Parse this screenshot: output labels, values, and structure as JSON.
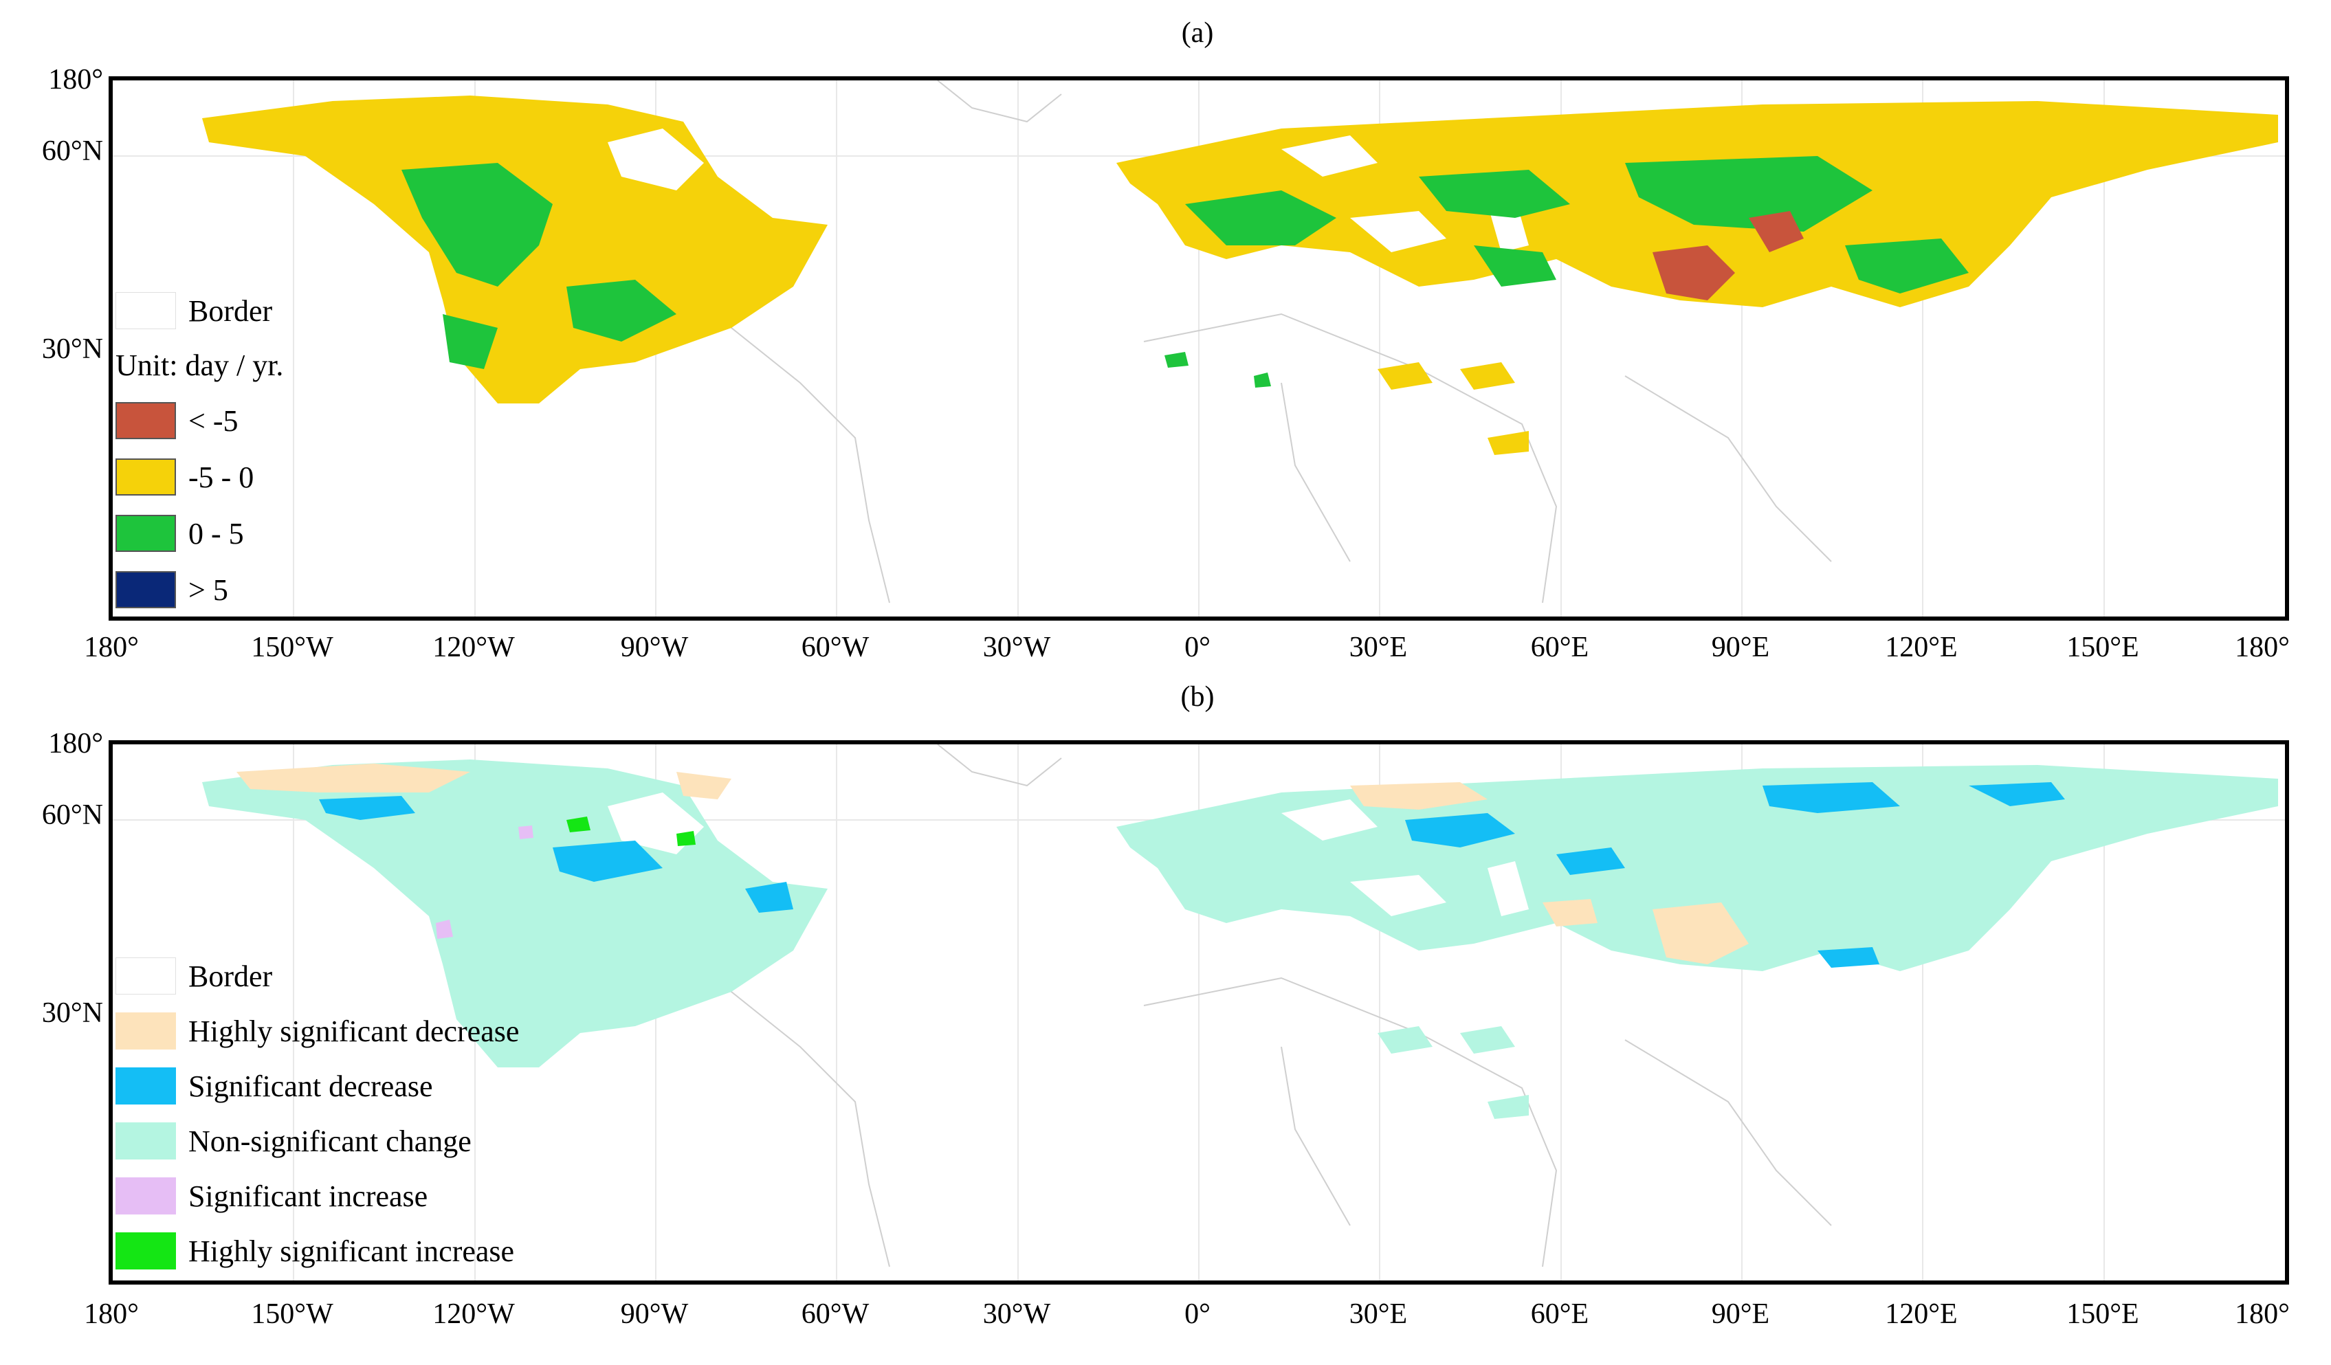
{
  "panels": [
    {
      "label": "(a)",
      "legend": {
        "border_label": "Border",
        "unit": "Unit: day / yr.",
        "items": [
          {
            "label": "< -5",
            "color": "#c8543c"
          },
          {
            "label": "-5 - 0",
            "color": "#f5d20a"
          },
          {
            "label": "0 - 5",
            "color": "#1ec43c"
          },
          {
            "label": "> 5",
            "color": "#0a2878"
          }
        ]
      }
    },
    {
      "label": "(b)",
      "legend": {
        "border_label": "Border",
        "items": [
          {
            "label": "Highly significant decrease",
            "color": "#fde3bb"
          },
          {
            "label": "Significant decrease",
            "color": "#14bef5"
          },
          {
            "label": "Non-significant change",
            "color": "#b4f5e1"
          },
          {
            "label": "Significant increase",
            "color": "#e6bef5"
          },
          {
            "label": "Highly significant increase",
            "color": "#14e614"
          }
        ]
      }
    }
  ],
  "axes": {
    "lat_labels": [
      "180°",
      "60°N",
      "30°N"
    ],
    "lon_labels": [
      "180°",
      "150°W",
      "120°W",
      "90°W",
      "60°W",
      "30°W",
      "0°",
      "30°E",
      "60°E",
      "90°E",
      "120°E",
      "150°E",
      "180°"
    ]
  }
}
